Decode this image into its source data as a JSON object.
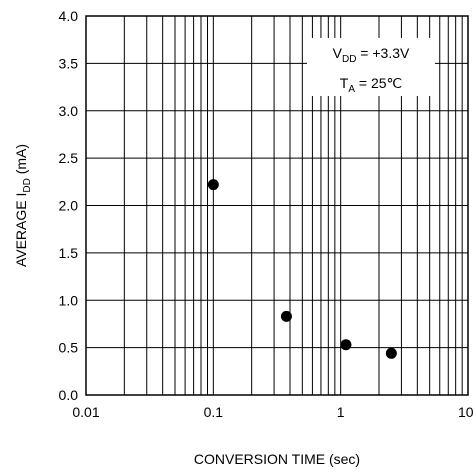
{
  "chart_data": {
    "type": "scatter",
    "xlabel": "CONVERSION TIME (sec)",
    "ylabel_prefix": "AVERAGE I",
    "ylabel_sub": "DD",
    "ylabel_suffix": " (mA)",
    "x_scale": "log",
    "xlim": [
      0.01,
      10
    ],
    "ylim": [
      0,
      4
    ],
    "grid": true,
    "x_ticks": [
      {
        "value": 0.01,
        "label": "0.01"
      },
      {
        "value": 0.1,
        "label": "0.1"
      },
      {
        "value": 1,
        "label": "1"
      },
      {
        "value": 10,
        "label": "10"
      }
    ],
    "y_ticks": [
      {
        "value": 0,
        "label": "0.0"
      },
      {
        "value": 0.5,
        "label": "0.5"
      },
      {
        "value": 1,
        "label": "1.0"
      },
      {
        "value": 1.5,
        "label": "1.5"
      },
      {
        "value": 2,
        "label": "2.0"
      },
      {
        "value": 2.5,
        "label": "2.5"
      },
      {
        "value": 3,
        "label": "3.0"
      },
      {
        "value": 3.5,
        "label": "3.5"
      },
      {
        "value": 4,
        "label": "4.0"
      }
    ],
    "points": [
      {
        "x": 0.1,
        "y": 2.22
      },
      {
        "x": 0.375,
        "y": 0.83
      },
      {
        "x": 1.1,
        "y": 0.53
      },
      {
        "x": 2.5,
        "y": 0.44
      }
    ],
    "annotations": {
      "vdd": {
        "main": "V",
        "sub": "DD",
        "rest": " = +3.3V"
      },
      "ta": {
        "main": "T",
        "sub": "A",
        "rest": " = 25℃"
      }
    },
    "point_color": "#000000",
    "grid_color": "#000000"
  }
}
